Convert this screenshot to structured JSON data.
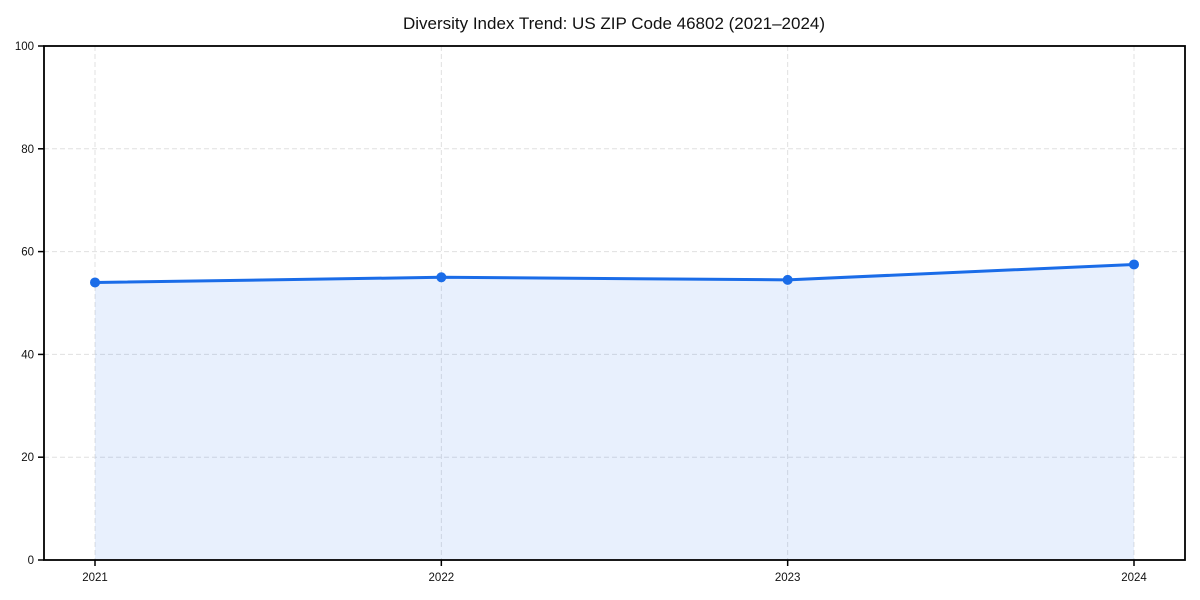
{
  "page": {
    "background_color": "#ffffff"
  },
  "chart_data": {
    "type": "area",
    "title": "Diversity Index Trend: US ZIP Code 46802 (2021–2024)",
    "categories": [
      "2021",
      "2022",
      "2023",
      "2024"
    ],
    "x": [
      2021,
      2022,
      2023,
      2024
    ],
    "series": [
      {
        "name": "Diversity Index",
        "values": [
          54,
          55,
          54.5,
          57.5
        ]
      }
    ],
    "xlabel": "",
    "ylabel": "",
    "ylim": [
      0,
      100
    ],
    "yticks": [
      0,
      20,
      40,
      60,
      80,
      100
    ],
    "grid": true,
    "grid_style": "dashed",
    "legend_position": "none",
    "colors": {
      "line": "#1a6ce8",
      "marker": "#1a6ce8",
      "fill": "#1a6ce8",
      "fill_opacity": 0.1,
      "gridline": "#e0e0e0",
      "spine": "#000000",
      "text": "#111111"
    }
  }
}
